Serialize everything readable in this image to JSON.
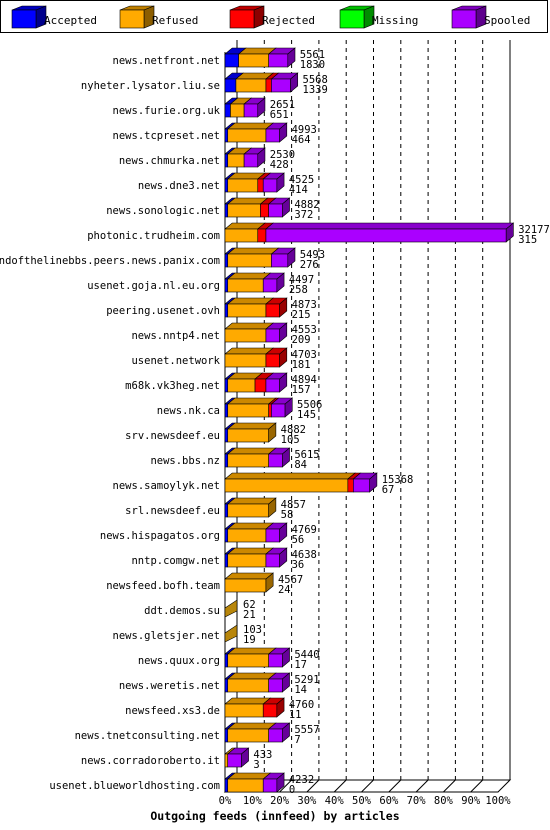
{
  "chart_data": {
    "type": "bar",
    "orientation": "horizontal",
    "stacked": true,
    "title": "Outgoing feeds (innfeed) by articles",
    "legend_position": "top",
    "legend": [
      {
        "name": "Accepted",
        "color": "#0000ff"
      },
      {
        "name": "Refused",
        "color": "#ffaa00"
      },
      {
        "name": "Rejected",
        "color": "#ff0000"
      },
      {
        "name": "Missing",
        "color": "#00ff00"
      },
      {
        "name": "Spooled",
        "color": "#aa00ff"
      }
    ],
    "x_axis": {
      "min": 0,
      "max": 100,
      "unit": "%",
      "ticks": [
        "0%",
        "10%",
        "20%",
        "30%",
        "40%",
        "50%",
        "60%",
        "70%",
        "80%",
        "90%",
        "100%"
      ]
    },
    "grid": true,
    "rows": [
      {
        "label": "news.netfront.net",
        "total": "5561",
        "spooled": "1830",
        "accepted": 5,
        "refused": 11,
        "rejected": 0,
        "missing": 0,
        "spool": 7
      },
      {
        "label": "nyheter.lysator.liu.se",
        "total": "5568",
        "spooled": "1339",
        "accepted": 4,
        "refused": 11,
        "rejected": 2,
        "missing": 0,
        "spool": 7
      },
      {
        "label": "news.furie.org.uk",
        "total": "2651",
        "spooled": "651",
        "accepted": 2,
        "refused": 5,
        "rejected": 0,
        "missing": 0,
        "spool": 5
      },
      {
        "label": "news.tcpreset.net",
        "total": "4993",
        "spooled": "464",
        "accepted": 1,
        "refused": 14,
        "rejected": 0,
        "missing": 0,
        "spool": 5
      },
      {
        "label": "news.chmurka.net",
        "total": "2530",
        "spooled": "428",
        "accepted": 1,
        "refused": 6,
        "rejected": 0,
        "missing": 0,
        "spool": 5
      },
      {
        "label": "news.dne3.net",
        "total": "4525",
        "spooled": "414",
        "accepted": 1,
        "refused": 11,
        "rejected": 2,
        "missing": 0,
        "spool": 5
      },
      {
        "label": "news.sonologic.net",
        "total": "4882",
        "spooled": "372",
        "accepted": 1,
        "refused": 12,
        "rejected": 3,
        "missing": 0,
        "spool": 5
      },
      {
        "label": "photonic.trudheim.com",
        "total": "32177",
        "spooled": "315",
        "accepted": 0,
        "refused": 12,
        "rejected": 3,
        "missing": 0,
        "spool": 88
      },
      {
        "label": "endofthelinebbs.peers.news.panix.com",
        "total": "5493",
        "spooled": "276",
        "accepted": 1,
        "refused": 16,
        "rejected": 0,
        "missing": 0,
        "spool": 6
      },
      {
        "label": "usenet.goja.nl.eu.org",
        "total": "4497",
        "spooled": "258",
        "accepted": 1,
        "refused": 13,
        "rejected": 0,
        "missing": 0,
        "spool": 5
      },
      {
        "label": "peering.usenet.ovh",
        "total": "4873",
        "spooled": "215",
        "accepted": 1,
        "refused": 14,
        "rejected": 5,
        "missing": 0,
        "spool": 0
      },
      {
        "label": "news.nntp4.net",
        "total": "4553",
        "spooled": "209",
        "accepted": 0,
        "refused": 15,
        "rejected": 0,
        "missing": 0,
        "spool": 5
      },
      {
        "label": "usenet.network",
        "total": "4703",
        "spooled": "181",
        "accepted": 0,
        "refused": 15,
        "rejected": 5,
        "missing": 0,
        "spool": 0
      },
      {
        "label": "m68k.vk3heg.net",
        "total": "4894",
        "spooled": "157",
        "accepted": 1,
        "refused": 10,
        "rejected": 4,
        "missing": 0,
        "spool": 5
      },
      {
        "label": "news.nk.ca",
        "total": "5506",
        "spooled": "145",
        "accepted": 1,
        "refused": 15,
        "rejected": 1,
        "missing": 0,
        "spool": 5
      },
      {
        "label": "srv.newsdeef.eu",
        "total": "4882",
        "spooled": "105",
        "accepted": 1,
        "refused": 15,
        "rejected": 0,
        "missing": 0,
        "spool": 0
      },
      {
        "label": "news.bbs.nz",
        "total": "5615",
        "spooled": "84",
        "accepted": 1,
        "refused": 15,
        "rejected": 0,
        "missing": 0,
        "spool": 5
      },
      {
        "label": "news.samoylyk.net",
        "total": "15368",
        "spooled": "67",
        "accepted": 0,
        "refused": 45,
        "rejected": 2,
        "missing": 0,
        "spool": 6
      },
      {
        "label": "srl.newsdeef.eu",
        "total": "4857",
        "spooled": "58",
        "accepted": 1,
        "refused": 15,
        "rejected": 0,
        "missing": 0,
        "spool": 0
      },
      {
        "label": "news.hispagatos.org",
        "total": "4769",
        "spooled": "56",
        "accepted": 1,
        "refused": 14,
        "rejected": 0,
        "missing": 0,
        "spool": 5
      },
      {
        "label": "nntp.comgw.net",
        "total": "4638",
        "spooled": "36",
        "accepted": 1,
        "refused": 14,
        "rejected": 0,
        "missing": 0,
        "spool": 5
      },
      {
        "label": "newsfeed.bofh.team",
        "total": "4567",
        "spooled": "24",
        "accepted": 0,
        "refused": 15,
        "rejected": 0,
        "missing": 0,
        "spool": 0
      },
      {
        "label": "ddt.demos.su",
        "total": "62",
        "spooled": "21",
        "accepted": 0,
        "refused": 0,
        "rejected": 0,
        "missing": 0,
        "spool": 0
      },
      {
        "label": "news.gletsjer.net",
        "total": "103",
        "spooled": "19",
        "accepted": 0,
        "refused": 0,
        "rejected": 0,
        "missing": 0,
        "spool": 0
      },
      {
        "label": "news.quux.org",
        "total": "5440",
        "spooled": "17",
        "accepted": 1,
        "refused": 15,
        "rejected": 0,
        "missing": 0,
        "spool": 5
      },
      {
        "label": "news.weretis.net",
        "total": "5291",
        "spooled": "14",
        "accepted": 1,
        "refused": 15,
        "rejected": 0,
        "missing": 0,
        "spool": 5
      },
      {
        "label": "newsfeed.xs3.de",
        "total": "4760",
        "spooled": "11",
        "accepted": 0,
        "refused": 14,
        "rejected": 5,
        "missing": 0,
        "spool": 0
      },
      {
        "label": "news.tnetconsulting.net",
        "total": "5557",
        "spooled": "7",
        "accepted": 1,
        "refused": 15,
        "rejected": 0,
        "missing": 0,
        "spool": 5
      },
      {
        "label": "news.corradoroberto.it",
        "total": "433",
        "spooled": "3",
        "accepted": 0,
        "refused": 1,
        "rejected": 0,
        "missing": 0,
        "spool": 5
      },
      {
        "label": "usenet.blueworldhosting.com",
        "total": "4232",
        "spooled": "0",
        "accepted": 1,
        "refused": 13,
        "rejected": 0,
        "missing": 0,
        "spool": 5
      }
    ]
  }
}
